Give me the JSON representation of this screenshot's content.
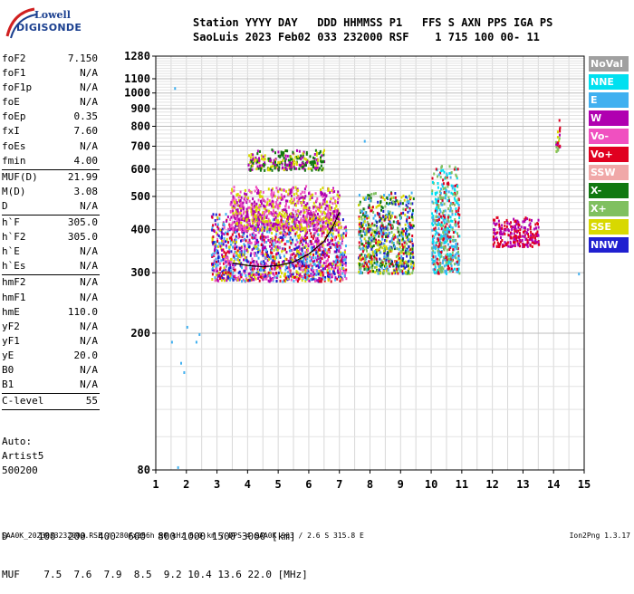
{
  "logo": {
    "line1": "Lowell",
    "line2": "DIGISONDE"
  },
  "header": {
    "line1": "Station YYYY DAY   DDD HHMMSS P1   FFS S AXN PPS IGA PS",
    "line2": "SaoLuis 2023 Feb02 033 232000 RSF    1 715 100 00- 11"
  },
  "params": [
    {
      "label": "foF2",
      "value": "7.150"
    },
    {
      "label": "foF1",
      "value": "N/A"
    },
    {
      "label": "foF1p",
      "value": "N/A"
    },
    {
      "label": "foE",
      "value": "N/A"
    },
    {
      "label": "foEp",
      "value": "0.35"
    },
    {
      "label": "fxI",
      "value": "7.60"
    },
    {
      "label": "foEs",
      "value": "N/A"
    },
    {
      "label": "fmin",
      "value": "4.00",
      "sep": true
    },
    {
      "label": "MUF(D)",
      "value": "21.99"
    },
    {
      "label": "M(D)",
      "value": "3.08"
    },
    {
      "label": "D",
      "value": "N/A",
      "sep": true
    },
    {
      "label": "h`F",
      "value": "305.0"
    },
    {
      "label": "h`F2",
      "value": "305.0"
    },
    {
      "label": "h`E",
      "value": "N/A"
    },
    {
      "label": "h`Es",
      "value": "N/A",
      "sep": true
    },
    {
      "label": "hmF2",
      "value": "N/A"
    },
    {
      "label": "hmF1",
      "value": "N/A"
    },
    {
      "label": "hmE",
      "value": "110.0"
    },
    {
      "label": "yF2",
      "value": "N/A"
    },
    {
      "label": "yF1",
      "value": "N/A"
    },
    {
      "label": "yE",
      "value": "20.0"
    },
    {
      "label": "B0",
      "value": "N/A"
    },
    {
      "label": "B1",
      "value": "N/A",
      "sep": true
    },
    {
      "label": "C-level",
      "value": "55",
      "sep": true
    }
  ],
  "auto": {
    "line1": "Auto:",
    "line2": "Artist5",
    "line3": "500200"
  },
  "muf_table": {
    "line1": "D     100  200  400  600  800 1000 1500 3000 [km]",
    "line2": "MUF    7.5  7.6  7.9  8.5  9.2 10.4 13.6 22.0 [MHz]"
  },
  "footer": "SAA0K_2023033232000.RSF / 280fx256h 50 kHz 5.0 km / DPS-4 SAA0K 903 / 2.6 S 315.8 E",
  "version": "Ion2Png 1.3.17",
  "legend": [
    {
      "label": "NoVal",
      "color": "#a0a0a0"
    },
    {
      "label": "NNE",
      "color": "#00e0f0"
    },
    {
      "label": "E",
      "color": "#40b0f0"
    },
    {
      "label": "W",
      "color": "#b000b0"
    },
    {
      "label": "Vo-",
      "color": "#f050c0"
    },
    {
      "label": "Vo+",
      "color": "#e00020"
    },
    {
      "label": "SSW",
      "color": "#f0a8a8"
    },
    {
      "label": "X-",
      "color": "#107810"
    },
    {
      "label": "X+",
      "color": "#80c060"
    },
    {
      "label": "SSE",
      "color": "#d8d800"
    },
    {
      "label": "NNW",
      "color": "#2020d0"
    }
  ],
  "chart_data": {
    "type": "scatter",
    "xlabel": "",
    "ylabel": "",
    "xlim": [
      1,
      15
    ],
    "ylim": [
      80,
      1280
    ],
    "xticks": [
      "1",
      "2",
      "3",
      "4",
      "5",
      "6",
      "7",
      "8",
      "9",
      "10",
      "11",
      "12",
      "13",
      "14",
      "15"
    ],
    "yticks": [
      {
        "value": 80,
        "label": "80"
      },
      {
        "value": 200,
        "label": "200"
      },
      {
        "value": 300,
        "label": "300"
      },
      {
        "value": 400,
        "label": "400"
      },
      {
        "value": 500,
        "label": "500"
      },
      {
        "value": 600,
        "label": "600"
      },
      {
        "value": 700,
        "label": "700"
      },
      {
        "value": 800,
        "label": "800"
      },
      {
        "value": 900,
        "label": "900"
      },
      {
        "value": 1000,
        "label": "1000"
      },
      {
        "value": 1100,
        "label": "1100"
      },
      {
        "value": 1280,
        "label": "1280"
      }
    ],
    "grid": true,
    "log_y": true,
    "echo_regions": [
      {
        "name": "O-trace main",
        "x": [
          2.8,
          7.2
        ],
        "y": [
          285,
          450
        ],
        "colors": [
          "#b000b0",
          "#e00020",
          "#2020d0",
          "#d8d800",
          "#f050c0",
          "#40b0f0"
        ]
      },
      {
        "name": "O-trace spread upper",
        "x": [
          3.4,
          7.0
        ],
        "y": [
          400,
          540
        ],
        "colors": [
          "#b000b0",
          "#f050c0",
          "#d8d800"
        ]
      },
      {
        "name": "X-trace",
        "x": [
          7.6,
          9.4
        ],
        "y": [
          300,
          520
        ],
        "colors": [
          "#e00020",
          "#40b0f0",
          "#2020d0",
          "#80c060",
          "#d8d800",
          "#107810"
        ]
      },
      {
        "name": "X-trace upper band",
        "x": [
          10.0,
          10.9
        ],
        "y": [
          300,
          620
        ],
        "colors": [
          "#40b0f0",
          "#00e0f0",
          "#e00020",
          "#80c060"
        ]
      },
      {
        "name": "scattered high",
        "x": [
          4.0,
          6.5
        ],
        "y": [
          600,
          690
        ],
        "colors": [
          "#107810",
          "#d8d800",
          "#b000b0"
        ]
      },
      {
        "name": "weak tail",
        "x": [
          12.0,
          13.5
        ],
        "y": [
          360,
          440
        ],
        "colors": [
          "#b000b0",
          "#e00020"
        ]
      },
      {
        "name": "spike 14 MHz",
        "x": [
          14.05,
          14.2
        ],
        "y": [
          680,
          840
        ],
        "colors": [
          "#b000b0",
          "#80c060",
          "#d8d800",
          "#e00020"
        ]
      }
    ],
    "isolated_points": [
      {
        "x": 1.6,
        "y": 1040
      },
      {
        "x": 1.5,
        "y": 190
      },
      {
        "x": 1.8,
        "y": 165
      },
      {
        "x": 1.9,
        "y": 155
      },
      {
        "x": 2.0,
        "y": 210
      },
      {
        "x": 1.7,
        "y": 82
      },
      {
        "x": 2.3,
        "y": 190
      },
      {
        "x": 2.4,
        "y": 200
      },
      {
        "x": 7.8,
        "y": 730
      },
      {
        "x": 14.8,
        "y": 300
      }
    ],
    "trace_curve": {
      "x": [
        3.5,
        4.0,
        4.5,
        5.0,
        5.5,
        6.0,
        6.5,
        6.8,
        7.0
      ],
      "y": [
        320,
        315,
        312,
        315,
        322,
        340,
        370,
        410,
        450
      ]
    }
  }
}
